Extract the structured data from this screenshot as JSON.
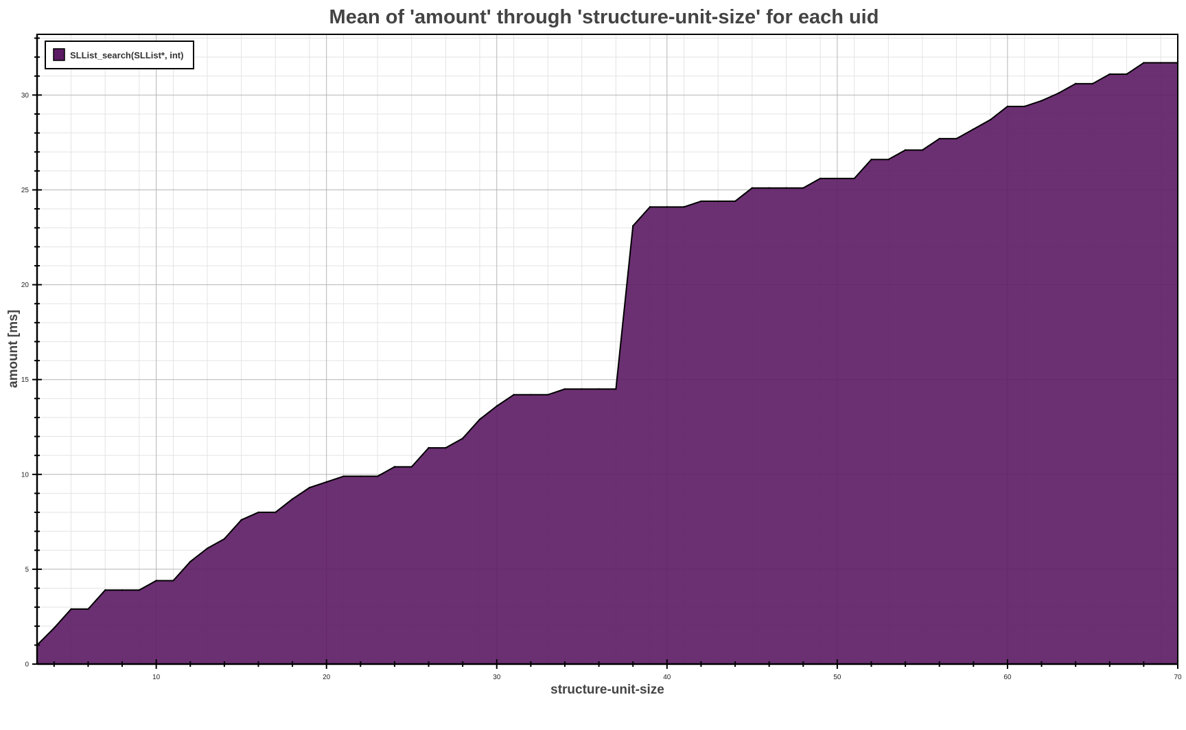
{
  "chart_data": {
    "type": "area",
    "title": "Mean of 'amount' through 'structure-unit-size' for each uid",
    "xlabel": "structure-unit-size",
    "ylabel": "amount [ms]",
    "xlim": [
      3,
      70
    ],
    "ylim": [
      0,
      33.2
    ],
    "x_ticks": [
      10,
      20,
      30,
      40,
      50,
      60,
      70
    ],
    "y_ticks": [
      0,
      5,
      10,
      15,
      20,
      25,
      30
    ],
    "grid": true,
    "legend_position": "top-left",
    "series": [
      {
        "name": "SLList_search(SLList*, int)",
        "color": "#5b1a63",
        "x": [
          3,
          4,
          5,
          6,
          7,
          8,
          9,
          10,
          11,
          12,
          13,
          14,
          15,
          16,
          17,
          18,
          19,
          20,
          21,
          22,
          23,
          24,
          25,
          26,
          27,
          28,
          29,
          30,
          31,
          32,
          33,
          34,
          35,
          36,
          37,
          38,
          39,
          40,
          41,
          42,
          43,
          44,
          45,
          46,
          47,
          48,
          49,
          50,
          51,
          52,
          53,
          54,
          55,
          56,
          57,
          58,
          59,
          60,
          61,
          62,
          63,
          64,
          65,
          66,
          67,
          68,
          69,
          70
        ],
        "values": [
          1.0,
          1.9,
          2.9,
          2.9,
          3.9,
          3.9,
          3.9,
          4.4,
          4.4,
          5.4,
          6.1,
          6.6,
          7.6,
          8.0,
          8.0,
          8.7,
          9.3,
          9.6,
          9.9,
          9.9,
          9.9,
          10.4,
          10.4,
          11.4,
          11.4,
          11.9,
          12.9,
          13.6,
          14.2,
          14.2,
          14.2,
          14.5,
          14.5,
          14.5,
          14.5,
          23.1,
          24.1,
          24.1,
          24.1,
          24.4,
          24.4,
          24.4,
          25.1,
          25.1,
          25.1,
          25.1,
          25.6,
          25.6,
          25.6,
          26.6,
          26.6,
          27.1,
          27.1,
          27.7,
          27.7,
          28.2,
          28.7,
          29.4,
          29.4,
          29.7,
          30.1,
          30.6,
          30.6,
          31.1,
          31.1,
          31.7,
          31.7,
          31.7
        ]
      }
    ]
  }
}
